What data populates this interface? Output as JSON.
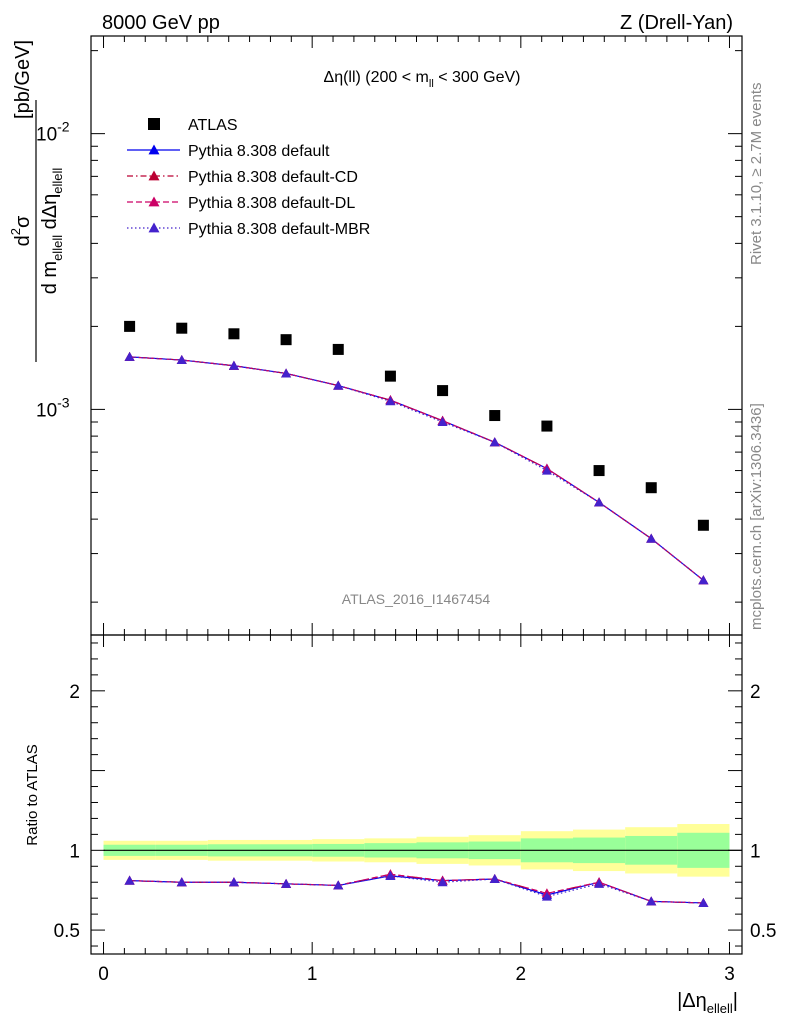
{
  "header": {
    "left": "8000 GeV pp",
    "right": "Z (Drell-Yan)"
  },
  "side_text": {
    "rivet": "Rivet 3.1.10, ≥ 2.7M events",
    "source": "mcplots.cern.ch [arXiv:1306.3436]"
  },
  "watermark": "ATLAS_2016_I1467454",
  "chart_data": [
    {
      "type": "scatter",
      "title": "Δη(ll) (200 < m_ll < 300 GeV)",
      "ylabel": "d²σ / d m_ellell dΔη_ellell [pb/GeV]",
      "yscale": "log",
      "xlim": [
        -0.06,
        3.06
      ],
      "ylim": [
        0.000152,
        0.0226
      ],
      "ytick_labels": [
        "10^{-3}",
        "10^{-2}"
      ],
      "legend_position": "top-left",
      "x": [
        0.125,
        0.375,
        0.625,
        0.875,
        1.125,
        1.375,
        1.625,
        1.875,
        2.125,
        2.375,
        2.625,
        2.875
      ],
      "series": [
        {
          "name": "ATLAS",
          "color": "#000000",
          "marker": "square",
          "values": [
            0.002,
            0.00197,
            0.00188,
            0.00179,
            0.00165,
            0.00132,
            0.00117,
            0.00095,
            0.00087,
            0.0006,
            0.00052,
            0.00038
          ]
        },
        {
          "name": "Pythia 8.308 default",
          "color": "#0000ee",
          "line": "solid",
          "marker": "triangle",
          "values": [
            0.00155,
            0.00151,
            0.00144,
            0.00135,
            0.00122,
            0.00108,
            0.00091,
            0.00076,
            0.00061,
            0.00046,
            0.00034,
            0.00024
          ]
        },
        {
          "name": "Pythia 8.308 default-CD",
          "color": "#bb0033",
          "line": "dashdot",
          "marker": "triangle",
          "values": [
            0.00155,
            0.00151,
            0.00144,
            0.00135,
            0.00122,
            0.00108,
            0.00091,
            0.00076,
            0.00061,
            0.00046,
            0.00034,
            0.00024
          ]
        },
        {
          "name": "Pythia 8.308 default-DL",
          "color": "#cc0066",
          "line": "dashed",
          "marker": "triangle",
          "values": [
            0.00155,
            0.00151,
            0.00144,
            0.00135,
            0.00122,
            0.00108,
            0.00091,
            0.00076,
            0.00061,
            0.00046,
            0.00034,
            0.00024
          ]
        },
        {
          "name": "Pythia 8.308 default-MBR",
          "color": "#4422cc",
          "line": "dotted",
          "marker": "triangle",
          "values": [
            0.00155,
            0.00151,
            0.00144,
            0.00135,
            0.00122,
            0.00107,
            0.0009,
            0.00076,
            0.0006,
            0.00046,
            0.00034,
            0.00024
          ]
        }
      ]
    },
    {
      "type": "line",
      "ylabel": "Ratio to ATLAS",
      "xlabel": "|Δη_ellell|",
      "xlim": [
        -0.06,
        3.06
      ],
      "ylim": [
        0.35,
        2.35
      ],
      "xticks": [
        0,
        1,
        2,
        3
      ],
      "yticks": [
        0.5,
        1,
        2
      ],
      "x_edges": [
        0,
        0.25,
        0.5,
        0.75,
        1.0,
        1.25,
        1.5,
        1.75,
        2.0,
        2.25,
        2.5,
        2.75,
        3.0
      ],
      "x": [
        0.125,
        0.375,
        0.625,
        0.875,
        1.125,
        1.375,
        1.625,
        1.875,
        2.125,
        2.375,
        2.625,
        2.875
      ],
      "bands": {
        "outer_color": "#ffff99",
        "inner_color": "#99ff99",
        "outer_half_width": [
          0.06,
          0.06,
          0.065,
          0.065,
          0.07,
          0.075,
          0.085,
          0.095,
          0.12,
          0.13,
          0.145,
          0.165
        ],
        "inner_half_width": [
          0.035,
          0.035,
          0.038,
          0.038,
          0.04,
          0.045,
          0.05,
          0.055,
          0.075,
          0.08,
          0.09,
          0.11
        ]
      },
      "series": [
        {
          "name": "Pythia 8.308 default",
          "color": "#0000ee",
          "line": "solid",
          "values": [
            0.81,
            0.8,
            0.8,
            0.79,
            0.78,
            0.84,
            0.81,
            0.82,
            0.72,
            0.8,
            0.68,
            0.67
          ]
        },
        {
          "name": "Pythia 8.308 default-CD",
          "color": "#bb0033",
          "line": "dashdot",
          "values": [
            0.81,
            0.8,
            0.8,
            0.79,
            0.78,
            0.85,
            0.81,
            0.82,
            0.73,
            0.8,
            0.68,
            0.67
          ]
        },
        {
          "name": "Pythia 8.308 default-DL",
          "color": "#cc0066",
          "line": "dashed",
          "values": [
            0.81,
            0.8,
            0.8,
            0.79,
            0.78,
            0.85,
            0.81,
            0.82,
            0.73,
            0.8,
            0.68,
            0.67
          ]
        },
        {
          "name": "Pythia 8.308 default-MBR",
          "color": "#4422cc",
          "line": "dotted",
          "values": [
            0.81,
            0.8,
            0.8,
            0.79,
            0.78,
            0.84,
            0.8,
            0.82,
            0.71,
            0.79,
            0.68,
            0.67
          ]
        }
      ]
    }
  ]
}
